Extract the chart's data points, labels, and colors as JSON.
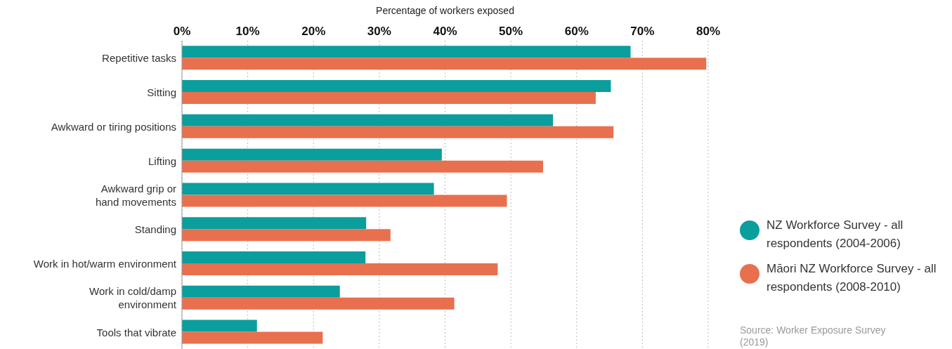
{
  "chart_data": {
    "type": "bar",
    "orientation": "horizontal",
    "xlabel": "Percentage of workers exposed",
    "categories": [
      "Repetitive tasks",
      "Sitting",
      "Awkward or tiring positions",
      "Lifting",
      "Awkward grip or\nhand movements",
      "Standing",
      "Work in hot/warm environment",
      "Work in cold/damp\nenvironment",
      "Tools that vibrate"
    ],
    "series": [
      {
        "name": "NZ Workforce Survey - all respondents (2004-2006)",
        "color": "#0a9e9c",
        "values": [
          68.2,
          65.2,
          56.4,
          39.5,
          38.3,
          28.0,
          27.9,
          24.0,
          11.4
        ]
      },
      {
        "name": "Māori NZ Workforce Survey - all respondents (2008-2010)",
        "color": "#e8704e",
        "values": [
          79.7,
          62.9,
          65.6,
          54.9,
          49.4,
          31.7,
          48.0,
          41.4,
          21.4
        ]
      }
    ],
    "xlim": [
      0,
      80
    ],
    "xticks": [
      {
        "value": 0,
        "label": "0%"
      },
      {
        "value": 10,
        "label": "10%"
      },
      {
        "value": 20,
        "label": "20%"
      },
      {
        "value": 30,
        "label": "30%"
      },
      {
        "value": 40,
        "label": "40%"
      },
      {
        "value": 50,
        "label": "50%"
      },
      {
        "value": 60,
        "label": "60%"
      },
      {
        "value": 70,
        "label": "70%"
      },
      {
        "value": 80,
        "label": "80%"
      }
    ],
    "grid": "x",
    "legend": "right",
    "annotations": [
      "Source: Worker Exposure Survey (2019)"
    ]
  }
}
